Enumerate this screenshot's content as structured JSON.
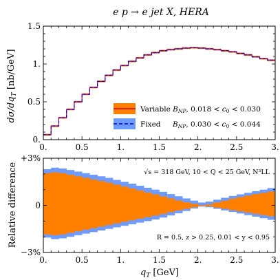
{
  "chart_data": [
    {
      "type": "area",
      "panel": "top",
      "title": "e p → e jet X,  HERA",
      "ylabel": "dσ/dq_T [nb/GeV]",
      "xlim": [
        0,
        3
      ],
      "ylim": [
        0,
        1.5
      ],
      "xticks": [
        "0.",
        "0.5",
        "1.",
        "1.5",
        "2.",
        "2.5",
        "3."
      ],
      "yticks": [
        "0.",
        "0.5",
        "1.",
        "1.5"
      ],
      "bin_edges": [
        0,
        0.1,
        0.2,
        0.3,
        0.4,
        0.5,
        0.6,
        0.7,
        0.8,
        0.9,
        1.0,
        1.1,
        1.2,
        1.3,
        1.4,
        1.5,
        1.6,
        1.7,
        1.8,
        1.9,
        2.0,
        2.1,
        2.2,
        2.3,
        2.4,
        2.5,
        2.6,
        2.7,
        2.8,
        2.9,
        3.0
      ],
      "series": [
        {
          "name": "Variable B_NP, 0.018 < c0 < 0.030",
          "color": "#ff8000",
          "line_color": "#e0001a",
          "values": [
            0.065,
            0.18,
            0.29,
            0.4,
            0.5,
            0.6,
            0.69,
            0.77,
            0.85,
            0.92,
            0.98,
            1.035,
            1.08,
            1.12,
            1.15,
            1.175,
            1.19,
            1.2,
            1.21,
            1.215,
            1.21,
            1.2,
            1.19,
            1.175,
            1.16,
            1.14,
            1.12,
            1.095,
            1.07,
            1.05
          ]
        },
        {
          "name": "Fixed     B_NP, 0.030 < c0 < 0.044",
          "color": "#6f9bff",
          "line_color": "#0000cc",
          "values": [
            0.065,
            0.18,
            0.29,
            0.4,
            0.5,
            0.6,
            0.69,
            0.77,
            0.85,
            0.92,
            0.98,
            1.035,
            1.08,
            1.12,
            1.15,
            1.175,
            1.19,
            1.2,
            1.21,
            1.215,
            1.21,
            1.2,
            1.19,
            1.175,
            1.16,
            1.14,
            1.12,
            1.095,
            1.07,
            1.05
          ]
        }
      ]
    },
    {
      "type": "area",
      "panel": "bottom",
      "xlabel": "q_T [GeV]",
      "ylabel": "Relative difference",
      "xlim": [
        0,
        3
      ],
      "ylim": [
        -3,
        3
      ],
      "xticks": [
        "0.",
        "0.5",
        "1.",
        "1.5",
        "2.",
        "2.5",
        "3."
      ],
      "yticks": [
        "−3%",
        "0",
        "+3%"
      ],
      "bin_edges": [
        0,
        0.1,
        0.2,
        0.3,
        0.4,
        0.5,
        0.6,
        0.7,
        0.8,
        0.9,
        1.0,
        1.1,
        1.2,
        1.3,
        1.4,
        1.5,
        1.6,
        1.7,
        1.8,
        1.9,
        2.0,
        2.1,
        2.2,
        2.3,
        2.4,
        2.5,
        2.6,
        2.7,
        2.8,
        2.9,
        3.0
      ],
      "bands": [
        {
          "name": "Fixed",
          "color": "#6f9bff",
          "upper": [
            2.3,
            2.4,
            2.35,
            2.25,
            2.15,
            2.05,
            1.95,
            1.85,
            1.75,
            1.62,
            1.5,
            1.38,
            1.25,
            1.12,
            1.0,
            0.86,
            0.72,
            0.58,
            0.44,
            0.3,
            0.18,
            0.24,
            0.36,
            0.48,
            0.6,
            0.7,
            0.8,
            0.9,
            1.0,
            1.1
          ],
          "lower": [
            -2.05,
            -2.15,
            -2.1,
            -2.0,
            -1.9,
            -1.8,
            -1.7,
            -1.6,
            -1.5,
            -1.4,
            -1.3,
            -1.2,
            -1.1,
            -1.0,
            -0.9,
            -0.78,
            -0.64,
            -0.5,
            -0.36,
            -0.2,
            -0.08,
            -0.12,
            -0.22,
            -0.32,
            -0.42,
            -0.52,
            -0.62,
            -0.72,
            -0.82,
            -0.92
          ]
        },
        {
          "name": "Variable",
          "color": "#ff8000",
          "upper": [
            2.05,
            2.1,
            2.05,
            1.95,
            1.85,
            1.75,
            1.65,
            1.55,
            1.45,
            1.32,
            1.2,
            1.08,
            0.95,
            0.82,
            0.7,
            0.57,
            0.44,
            0.31,
            0.2,
            0.1,
            0.02,
            0.06,
            0.18,
            0.3,
            0.42,
            0.52,
            0.62,
            0.72,
            0.8,
            0.88
          ],
          "lower": [
            -1.85,
            -1.9,
            -1.85,
            -1.75,
            -1.65,
            -1.55,
            -1.45,
            -1.35,
            -1.25,
            -1.15,
            -1.05,
            -0.95,
            -0.85,
            -0.75,
            -0.65,
            -0.55,
            -0.43,
            -0.32,
            -0.22,
            -0.12,
            -0.04,
            -0.06,
            -0.14,
            -0.22,
            -0.3,
            -0.38,
            -0.46,
            -0.54,
            -0.62,
            -0.7
          ]
        }
      ],
      "annotations": [
        "√s = 318 GeV,  10 < Q < 25 GeV,  N³LL",
        "R = 0.5,    z > 0.25,    0.01 < y < 0.95"
      ]
    }
  ]
}
